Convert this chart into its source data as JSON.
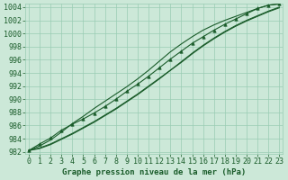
{
  "title": "Graphe pression niveau de la mer (hPa)",
  "y_min": 982,
  "y_max": 1004,
  "y_step": 2,
  "background_color": "#cce8d8",
  "grid_color": "#99ccb3",
  "line_color": "#1a5c2a",
  "marker_color": "#1a5c2a",
  "line_marked": [
    982.2,
    983.2,
    984.1,
    985.3,
    986.2,
    987.0,
    987.9,
    988.9,
    990.0,
    991.2,
    992.3,
    993.5,
    994.8,
    996.1,
    997.3,
    998.5,
    999.5,
    1000.5,
    1001.4,
    1002.2,
    1003.0,
    1003.8,
    1004.3,
    1004.5
  ],
  "line_upper": [
    982.2,
    982.9,
    983.8,
    985.0,
    986.3,
    987.4,
    988.6,
    989.7,
    990.8,
    991.9,
    993.1,
    994.4,
    995.8,
    997.2,
    998.4,
    999.5,
    1000.5,
    1001.3,
    1002.0,
    1002.6,
    1003.2,
    1003.8,
    1004.3,
    1004.5
  ],
  "line_lower1": [
    982.2,
    982.6,
    983.2,
    984.0,
    984.8,
    985.7,
    986.6,
    987.6,
    988.6,
    989.7,
    990.8,
    992.0,
    993.2,
    994.4,
    995.7,
    997.0,
    998.2,
    999.3,
    1000.3,
    1001.2,
    1002.0,
    1002.7,
    1003.4,
    1004.0
  ],
  "line_lower2": [
    982.2,
    982.5,
    983.1,
    983.9,
    984.7,
    985.6,
    986.5,
    987.5,
    988.5,
    989.6,
    990.7,
    991.9,
    993.1,
    994.4,
    995.6,
    996.9,
    998.1,
    999.2,
    1000.2,
    1001.1,
    1001.9,
    1002.6,
    1003.3,
    1003.9
  ],
  "label_fontsize": 6.0,
  "title_fontsize": 6.5
}
